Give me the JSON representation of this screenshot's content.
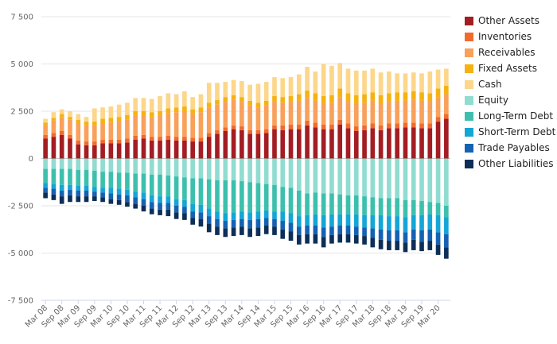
{
  "chart_data": {
    "type": "bar",
    "stacked": true,
    "title": "",
    "xlabel": "",
    "ylabel": "",
    "ylim": [
      -7500,
      7500
    ],
    "yticks": [
      7500,
      5000,
      2500,
      0,
      -2500,
      -5000,
      -7500
    ],
    "ytick_labels": [
      "7 500",
      "5 000",
      "2 500",
      "0",
      "-2 500",
      "-5 000",
      "-7 500"
    ],
    "xtick_labels": [
      "Mar 08",
      "Sep 08",
      "Mar 09",
      "Sep 09",
      "Mar 10",
      "Sep 10",
      "Mar 11",
      "Sep 11",
      "Mar 12",
      "Sep 12",
      "Mar 13",
      "Sep 13",
      "Mar 14",
      "Sep 14",
      "Mar 15",
      "Sep 15",
      "Mar 16",
      "Sep 16",
      "Mar 17",
      "Sep 17",
      "Mar 18",
      "Sep 18",
      "Mar 19",
      "Sep 19",
      "Mar 20"
    ],
    "categories": [
      "Mar 08",
      "Jun 08",
      "Sep 08",
      "Dec 08",
      "Mar 09",
      "Jun 09",
      "Sep 09",
      "Dec 09",
      "Mar 10",
      "Jun 10",
      "Sep 10",
      "Dec 10",
      "Mar 11",
      "Jun 11",
      "Sep 11",
      "Dec 11",
      "Mar 12",
      "Jun 12",
      "Sep 12",
      "Dec 12",
      "Mar 13",
      "Jun 13",
      "Sep 13",
      "Dec 13",
      "Mar 14",
      "Jun 14",
      "Sep 14",
      "Dec 14",
      "Mar 15",
      "Jun 15",
      "Sep 15",
      "Dec 15",
      "Mar 16",
      "Jun 16",
      "Sep 16",
      "Dec 16",
      "Mar 17",
      "Jun 17",
      "Sep 17",
      "Dec 17",
      "Mar 18",
      "Jun 18",
      "Sep 18",
      "Dec 18",
      "Mar 19",
      "Jun 19",
      "Sep 19",
      "Dec 19",
      "Mar 20",
      "Jun 20"
    ],
    "legend_position": "right",
    "series": [
      {
        "name": "Other Assets",
        "color": "#a31d22",
        "values": [
          1050,
          1150,
          1250,
          1050,
          750,
          700,
          700,
          800,
          800,
          800,
          850,
          1000,
          1050,
          950,
          950,
          1000,
          950,
          950,
          900,
          900,
          1150,
          1300,
          1450,
          1550,
          1500,
          1300,
          1300,
          1350,
          1550,
          1500,
          1550,
          1550,
          1750,
          1650,
          1550,
          1550,
          1800,
          1600,
          1450,
          1500,
          1600,
          1500,
          1600,
          1600,
          1650,
          1650,
          1600,
          1600,
          1950,
          2100
        ]
      },
      {
        "name": "Inventories",
        "color": "#f36a2d",
        "values": [
          200,
          200,
          200,
          200,
          200,
          200,
          200,
          200,
          200,
          200,
          200,
          200,
          200,
          200,
          200,
          200,
          200,
          200,
          200,
          200,
          200,
          200,
          200,
          200,
          200,
          200,
          200,
          200,
          200,
          250,
          250,
          250,
          250,
          250,
          250,
          250,
          250,
          250,
          250,
          250,
          250,
          250,
          250,
          250,
          250,
          250,
          250,
          250,
          250,
          250
        ]
      },
      {
        "name": "Receivables",
        "color": "#f9a05a",
        "values": [
          500,
          650,
          750,
          800,
          900,
          850,
          850,
          850,
          900,
          950,
          1000,
          1050,
          1000,
          1050,
          1100,
          1200,
          1300,
          1350,
          1250,
          1350,
          1350,
          1350,
          1350,
          1350,
          1300,
          1300,
          1200,
          1250,
          1250,
          1200,
          1200,
          1250,
          1200,
          1150,
          1100,
          1150,
          1200,
          1150,
          1200,
          1200,
          1200,
          1150,
          1150,
          1200,
          1150,
          1200,
          1200,
          1150,
          1050,
          1050
        ]
      },
      {
        "name": "Fixed Assets",
        "color": "#f5b212",
        "values": [
          150,
          150,
          150,
          150,
          200,
          200,
          200,
          250,
          250,
          250,
          250,
          250,
          250,
          250,
          250,
          250,
          250,
          250,
          250,
          250,
          250,
          250,
          250,
          250,
          250,
          250,
          250,
          250,
          300,
          300,
          300,
          350,
          400,
          400,
          400,
          400,
          450,
          450,
          450,
          450,
          450,
          450,
          450,
          450,
          450,
          450,
          450,
          450,
          450,
          450
        ]
      },
      {
        "name": "Cash",
        "color": "#fcd68a",
        "values": [
          200,
          300,
          250,
          300,
          300,
          250,
          700,
          600,
          600,
          650,
          650,
          700,
          700,
          700,
          800,
          800,
          700,
          800,
          650,
          700,
          1050,
          900,
          800,
          800,
          850,
          850,
          1000,
          1000,
          1000,
          1000,
          1000,
          1050,
          1250,
          1150,
          1700,
          1550,
          1350,
          1300,
          1300,
          1250,
          1250,
          1200,
          1150,
          1000,
          1000,
          1000,
          1000,
          1150,
          1000,
          900
        ]
      },
      {
        "name": "Equity",
        "color": "#90dcd0",
        "values": [
          -550,
          -550,
          -550,
          -550,
          -600,
          -600,
          -650,
          -700,
          -700,
          -750,
          -750,
          -800,
          -800,
          -850,
          -850,
          -900,
          -950,
          -1000,
          -1050,
          -1050,
          -1100,
          -1150,
          -1150,
          -1150,
          -1200,
          -1250,
          -1300,
          -1350,
          -1400,
          -1500,
          -1550,
          -1700,
          -1850,
          -1800,
          -1850,
          -1850,
          -1900,
          -1950,
          -1950,
          -2000,
          -2050,
          -2100,
          -2100,
          -2100,
          -2200,
          -2200,
          -2250,
          -2300,
          -2350,
          -2500
        ]
      },
      {
        "name": "Long-Term Debt",
        "color": "#3cc0ad",
        "values": [
          -750,
          -800,
          -850,
          -850,
          -850,
          -850,
          -850,
          -850,
          -850,
          -850,
          -900,
          -950,
          -1000,
          -1100,
          -1150,
          -1100,
          -1200,
          -1200,
          -1350,
          -1400,
          -1550,
          -1650,
          -1750,
          -1700,
          -1600,
          -1600,
          -1500,
          -1400,
          -1400,
          -1300,
          -1350,
          -1350,
          -1150,
          -1150,
          -1150,
          -1100,
          -1050,
          -1000,
          -1000,
          -1000,
          -950,
          -900,
          -950,
          -950,
          -900,
          -800,
          -750,
          -650,
          -650,
          -600
        ]
      },
      {
        "name": "Short-Term Debt",
        "color": "#13a6d6",
        "values": [
          -250,
          -250,
          -300,
          -250,
          -250,
          -250,
          -250,
          -250,
          -300,
          -300,
          -300,
          -300,
          -350,
          -350,
          -350,
          -350,
          -350,
          -350,
          -400,
          -400,
          -400,
          -400,
          -400,
          -400,
          -400,
          -400,
          -400,
          -400,
          -400,
          -500,
          -500,
          -550,
          -550,
          -600,
          -650,
          -650,
          -600,
          -600,
          -650,
          -650,
          -700,
          -750,
          -750,
          -750,
          -800,
          -750,
          -800,
          -800,
          -900,
          -900
        ]
      },
      {
        "name": "Trade Payables",
        "color": "#1562b4",
        "values": [
          -250,
          -300,
          -300,
          -300,
          -300,
          -300,
          -250,
          -250,
          -300,
          -300,
          -350,
          -350,
          -350,
          -350,
          -350,
          -350,
          -350,
          -350,
          -350,
          -350,
          -400,
          -400,
          -400,
          -400,
          -400,
          -450,
          -450,
          -400,
          -400,
          -450,
          -450,
          -450,
          -450,
          -450,
          -500,
          -450,
          -450,
          -450,
          -450,
          -450,
          -500,
          -550,
          -550,
          -550,
          -550,
          -550,
          -600,
          -600,
          -650,
          -700
        ]
      },
      {
        "name": "Other Liabilities",
        "color": "#0d2f57",
        "values": [
          -300,
          -300,
          -400,
          -350,
          -300,
          -300,
          -250,
          -250,
          -250,
          -250,
          -250,
          -250,
          -300,
          -300,
          -300,
          -350,
          -350,
          -350,
          -350,
          -400,
          -450,
          -450,
          -450,
          -450,
          -450,
          -450,
          -450,
          -450,
          -450,
          -500,
          -500,
          -500,
          -500,
          -500,
          -550,
          -450,
          -450,
          -450,
          -450,
          -450,
          -500,
          -500,
          -500,
          -500,
          -500,
          -550,
          -500,
          -500,
          -550,
          -600
        ]
      }
    ]
  }
}
